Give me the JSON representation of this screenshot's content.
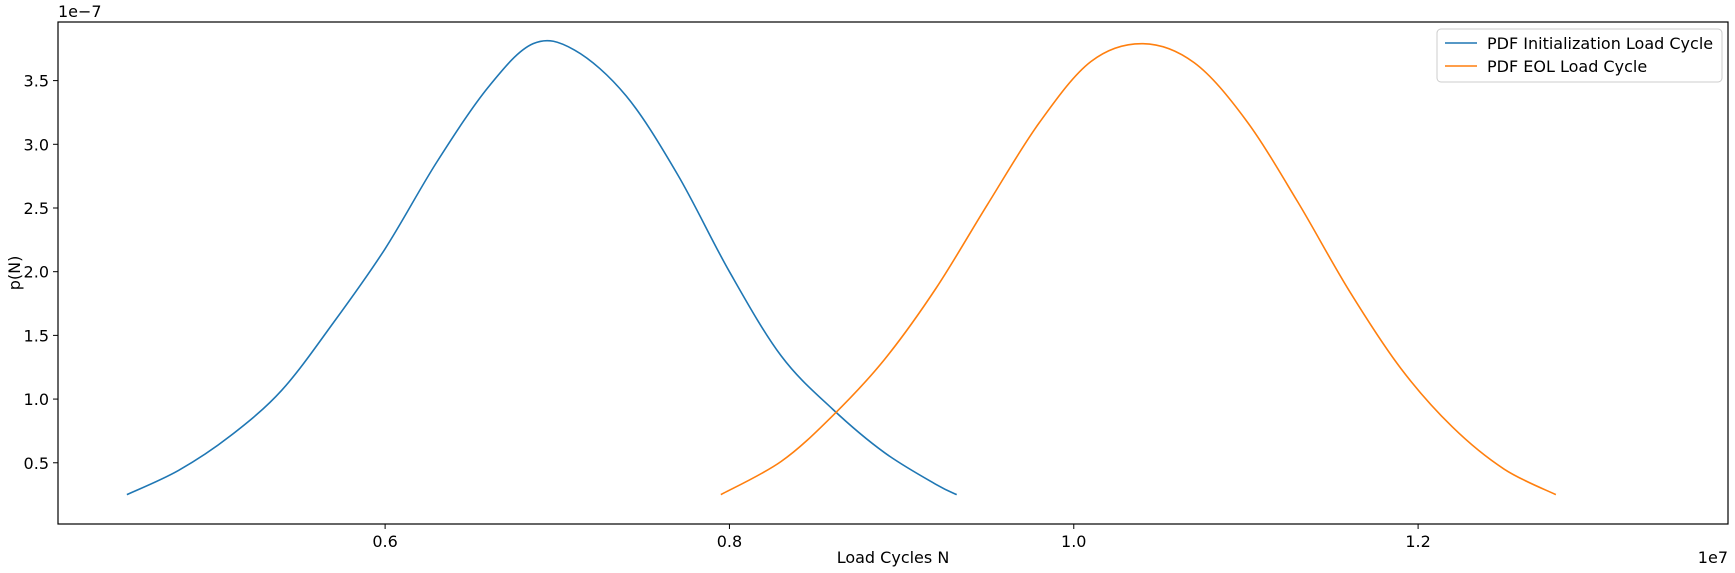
{
  "chart_data": {
    "type": "line",
    "title": "",
    "xlabel": "Load Cycles N",
    "ylabel": "p(N)",
    "x_offset_text": "1e7",
    "y_offset_text": "1e−7",
    "x_scale": 10000000,
    "y_scale": 1e-07,
    "xlim": [
      4100000,
      13800000
    ],
    "ylim": [
      0.0194,
      3.96
    ],
    "x_ticks": [
      {
        "value": 6000000,
        "label": "0.6"
      },
      {
        "value": 8000000,
        "label": "0.8"
      },
      {
        "value": 10000000,
        "label": "1.0"
      },
      {
        "value": 12000000,
        "label": "1.2"
      }
    ],
    "y_ticks": [
      {
        "value": 0.5,
        "label": "0.5"
      },
      {
        "value": 1.0,
        "label": "1.0"
      },
      {
        "value": 1.5,
        "label": "1.5"
      },
      {
        "value": 2.0,
        "label": "2.0"
      },
      {
        "value": 2.5,
        "label": "2.5"
      },
      {
        "value": 3.0,
        "label": "3.0"
      },
      {
        "value": 3.5,
        "label": "3.5"
      }
    ],
    "grid": false,
    "legend_position": "top-right",
    "series": [
      {
        "name": "PDF Initialization Load Cycle",
        "color": "#1f77b4",
        "x": [
          4500000,
          4800000,
          5100000,
          5400000,
          5700000,
          6000000,
          6300000,
          6600000,
          6860000,
          7100000,
          7400000,
          7700000,
          8000000,
          8300000,
          8600000,
          8900000,
          9200000,
          9320000
        ],
        "y": [
          0.25,
          0.44,
          0.71,
          1.07,
          1.6,
          2.18,
          2.86,
          3.45,
          3.79,
          3.74,
          3.38,
          2.76,
          2.0,
          1.34,
          0.92,
          0.58,
          0.33,
          0.25
        ]
      },
      {
        "name": "PDF EOL Load Cycle",
        "color": "#ff7f0e",
        "x": [
          7950000,
          8300000,
          8600000,
          8900000,
          9200000,
          9500000,
          9800000,
          10100000,
          10400000,
          10700000,
          11000000,
          11300000,
          11600000,
          11900000,
          12200000,
          12500000,
          12800000
        ],
        "y": [
          0.25,
          0.51,
          0.87,
          1.31,
          1.87,
          2.53,
          3.17,
          3.65,
          3.79,
          3.64,
          3.19,
          2.55,
          1.85,
          1.24,
          0.78,
          0.45,
          0.25
        ]
      }
    ]
  }
}
